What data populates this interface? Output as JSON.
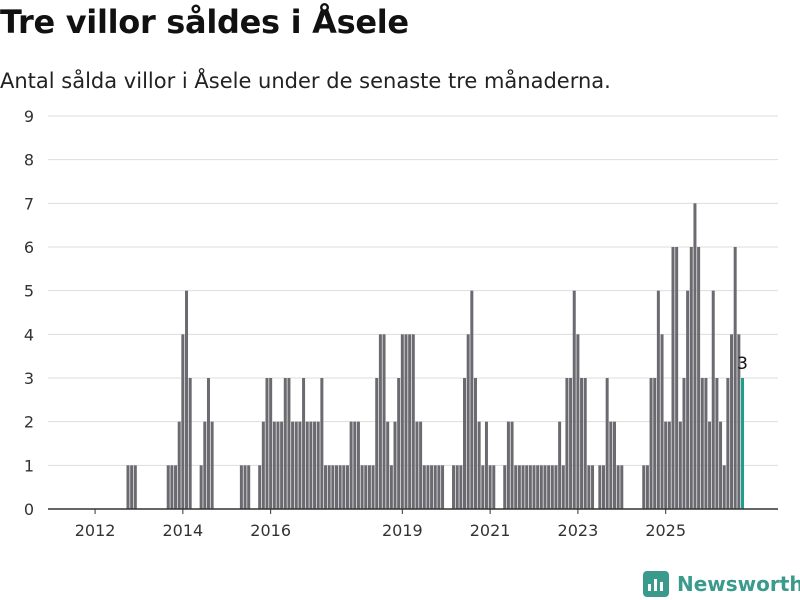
{
  "header": {
    "title": "Tre villor såldes i Åsele",
    "subtitle": "Antal sålda villor i Åsele under de senaste tre månaderna."
  },
  "footer": {
    "brand": "Newsworthy",
    "logo_icon": "bar-chart-logo-icon"
  },
  "colors": {
    "bar": "#6b6a70",
    "highlight": "#1f9e8e",
    "grid": "#dddddd",
    "axis": "#333333",
    "brand": "#3a9a8c"
  },
  "chart_data": {
    "type": "bar",
    "title": "Tre villor såldes i Åsele",
    "subtitle": "Antal sålda villor i Åsele under de senaste tre månaderna.",
    "xlabel": "",
    "ylabel": "",
    "ylim": [
      0,
      9
    ],
    "yticks": [
      0,
      1,
      2,
      3,
      4,
      5,
      6,
      7,
      8,
      9
    ],
    "xticks": [
      "2012",
      "2014",
      "2016",
      "2019",
      "2021",
      "2023",
      "2025"
    ],
    "grid": true,
    "x_start": "2011-03",
    "x_end": "2025-08",
    "highlight_last": true,
    "last_value_label": "3",
    "values": [
      0,
      0,
      0,
      0,
      0,
      0,
      0,
      0,
      0,
      0,
      0,
      0,
      0,
      0,
      0,
      0,
      0,
      0,
      0,
      1,
      1,
      1,
      0,
      0,
      0,
      0,
      0,
      0,
      0,
      0,
      1,
      1,
      1,
      2,
      4,
      5,
      3,
      0,
      0,
      1,
      2,
      3,
      2,
      0,
      0,
      0,
      0,
      0,
      0,
      0,
      1,
      1,
      1,
      0,
      0,
      1,
      2,
      3,
      3,
      2,
      2,
      2,
      3,
      3,
      2,
      2,
      2,
      3,
      2,
      2,
      2,
      2,
      3,
      1,
      1,
      1,
      1,
      1,
      1,
      1,
      2,
      2,
      2,
      1,
      1,
      1,
      1,
      3,
      4,
      4,
      2,
      1,
      2,
      3,
      4,
      4,
      4,
      4,
      2,
      2,
      1,
      1,
      1,
      1,
      1,
      1,
      0,
      0,
      1,
      1,
      1,
      3,
      4,
      5,
      3,
      2,
      1,
      2,
      1,
      1,
      0,
      0,
      1,
      2,
      2,
      1,
      1,
      1,
      1,
      1,
      1,
      1,
      1,
      1,
      1,
      1,
      1,
      2,
      1,
      3,
      3,
      5,
      4,
      3,
      3,
      1,
      1,
      0,
      1,
      1,
      3,
      2,
      2,
      1,
      1,
      0,
      0,
      0,
      0,
      0,
      1,
      1,
      3,
      3,
      5,
      4,
      2,
      2,
      6,
      6,
      2,
      3,
      5,
      6,
      7,
      6,
      3,
      3,
      2,
      5,
      3,
      2,
      1,
      3,
      4,
      6,
      4,
      3
    ]
  }
}
